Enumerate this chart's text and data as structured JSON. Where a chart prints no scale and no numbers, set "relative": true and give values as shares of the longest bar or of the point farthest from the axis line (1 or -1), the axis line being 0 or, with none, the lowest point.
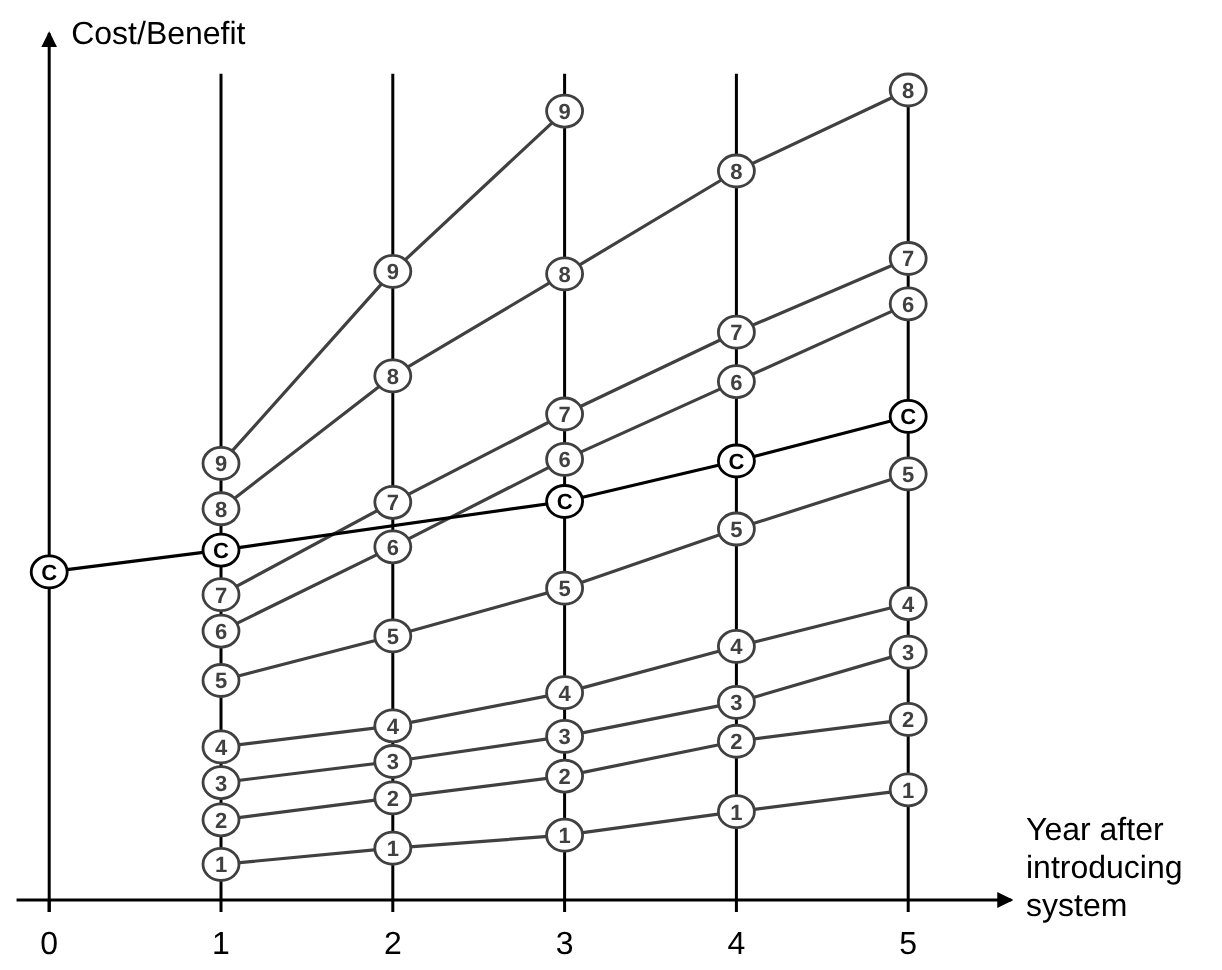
{
  "chart_data": {
    "type": "line",
    "relative": true,
    "xlabel": "Year after introducing system",
    "ylabel": "Cost/Benefit",
    "xlim": [
      -0.19,
      5.6
    ],
    "xticks": [
      0,
      1,
      2,
      3,
      4,
      5
    ],
    "grid": "x",
    "legend": false,
    "marker": "circle",
    "line_style": "solid",
    "series": [
      {
        "name": "1",
        "color": "#404040",
        "x": [
          1,
          2,
          3,
          4,
          5
        ],
        "values": [
          0.044,
          0.064,
          0.08,
          0.109,
          0.136
        ]
      },
      {
        "name": "2",
        "color": "#404040",
        "x": [
          1,
          2,
          3,
          4,
          5
        ],
        "values": [
          0.099,
          0.126,
          0.153,
          0.196,
          0.223
        ]
      },
      {
        "name": "3",
        "color": "#404040",
        "x": [
          1,
          2,
          3,
          4,
          5
        ],
        "values": [
          0.145,
          0.171,
          0.202,
          0.244,
          0.306
        ]
      },
      {
        "name": "4",
        "color": "#404040",
        "x": [
          1,
          2,
          3,
          4,
          5
        ],
        "values": [
          0.189,
          0.215,
          0.256,
          0.313,
          0.366
        ]
      },
      {
        "name": "5",
        "color": "#404040",
        "x": [
          1,
          2,
          3,
          4,
          5
        ],
        "values": [
          0.271,
          0.326,
          0.385,
          0.458,
          0.526
        ]
      },
      {
        "name": "6",
        "color": "#404040",
        "x": [
          1,
          2,
          3,
          4,
          5
        ],
        "values": [
          0.332,
          0.436,
          0.544,
          0.64,
          0.736
        ]
      },
      {
        "name": "7",
        "color": "#404040",
        "x": [
          1,
          2,
          3,
          4,
          5
        ],
        "values": [
          0.377,
          0.491,
          0.6,
          0.701,
          0.792
        ]
      },
      {
        "name": "8",
        "color": "#404040",
        "x": [
          1,
          2,
          3,
          4,
          5
        ],
        "values": [
          0.483,
          0.647,
          0.773,
          0.9,
          1
        ]
      },
      {
        "name": "9",
        "color": "#404040",
        "x": [
          1,
          2,
          3
        ],
        "values": [
          0.539,
          0.776,
          0.974
        ]
      },
      {
        "name": "C",
        "color": "#000000",
        "x": [
          0,
          1,
          3,
          4,
          5
        ],
        "values": [
          0.405,
          0.432,
          0.492,
          0.542,
          0.597
        ]
      }
    ]
  }
}
